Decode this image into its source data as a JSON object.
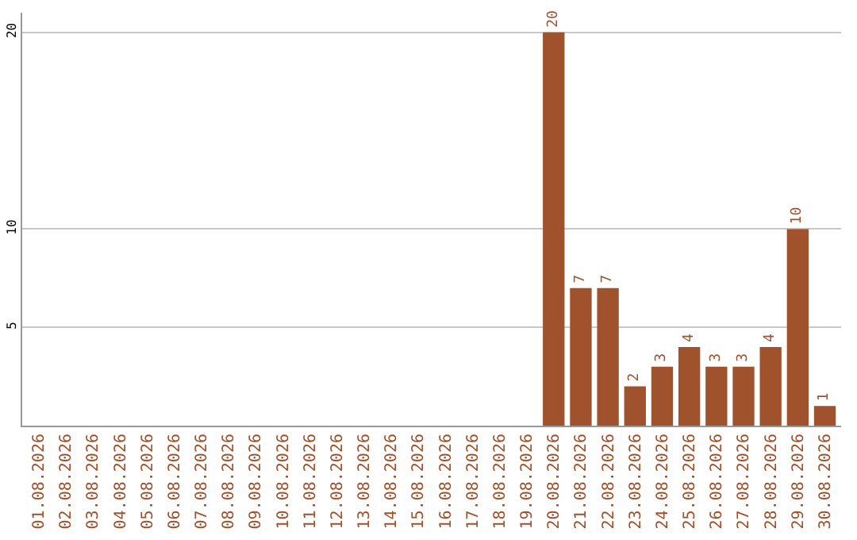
{
  "chart_data": {
    "type": "bar",
    "categories": [
      "01.08.2026",
      "02.08.2026",
      "03.08.2026",
      "04.08.2026",
      "05.08.2026",
      "06.08.2026",
      "07.08.2026",
      "08.08.2026",
      "09.08.2026",
      "10.08.2026",
      "11.08.2026",
      "12.08.2026",
      "13.08.2026",
      "14.08.2026",
      "15.08.2026",
      "16.08.2026",
      "17.08.2026",
      "18.08.2026",
      "19.08.2026",
      "20.08.2026",
      "21.08.2026",
      "22.08.2026",
      "23.08.2026",
      "24.08.2026",
      "25.08.2026",
      "26.08.2026",
      "27.08.2026",
      "28.08.2026",
      "29.08.2026",
      "30.08.2026"
    ],
    "values": [
      0,
      0,
      0,
      0,
      0,
      0,
      0,
      0,
      0,
      0,
      0,
      0,
      0,
      0,
      0,
      0,
      0,
      0,
      0,
      20,
      7,
      7,
      2,
      3,
      4,
      3,
      3,
      4,
      10,
      1
    ],
    "value_labels": [
      null,
      null,
      null,
      null,
      null,
      null,
      null,
      null,
      null,
      null,
      null,
      null,
      null,
      null,
      null,
      null,
      null,
      null,
      null,
      "20",
      "7",
      "7",
      "2",
      "3",
      "4",
      "3",
      "3",
      "4",
      "10",
      "1"
    ],
    "color": "#a0522d",
    "ylim": [
      0,
      21
    ],
    "yticks": [
      5,
      10,
      20
    ],
    "grid": "y"
  }
}
